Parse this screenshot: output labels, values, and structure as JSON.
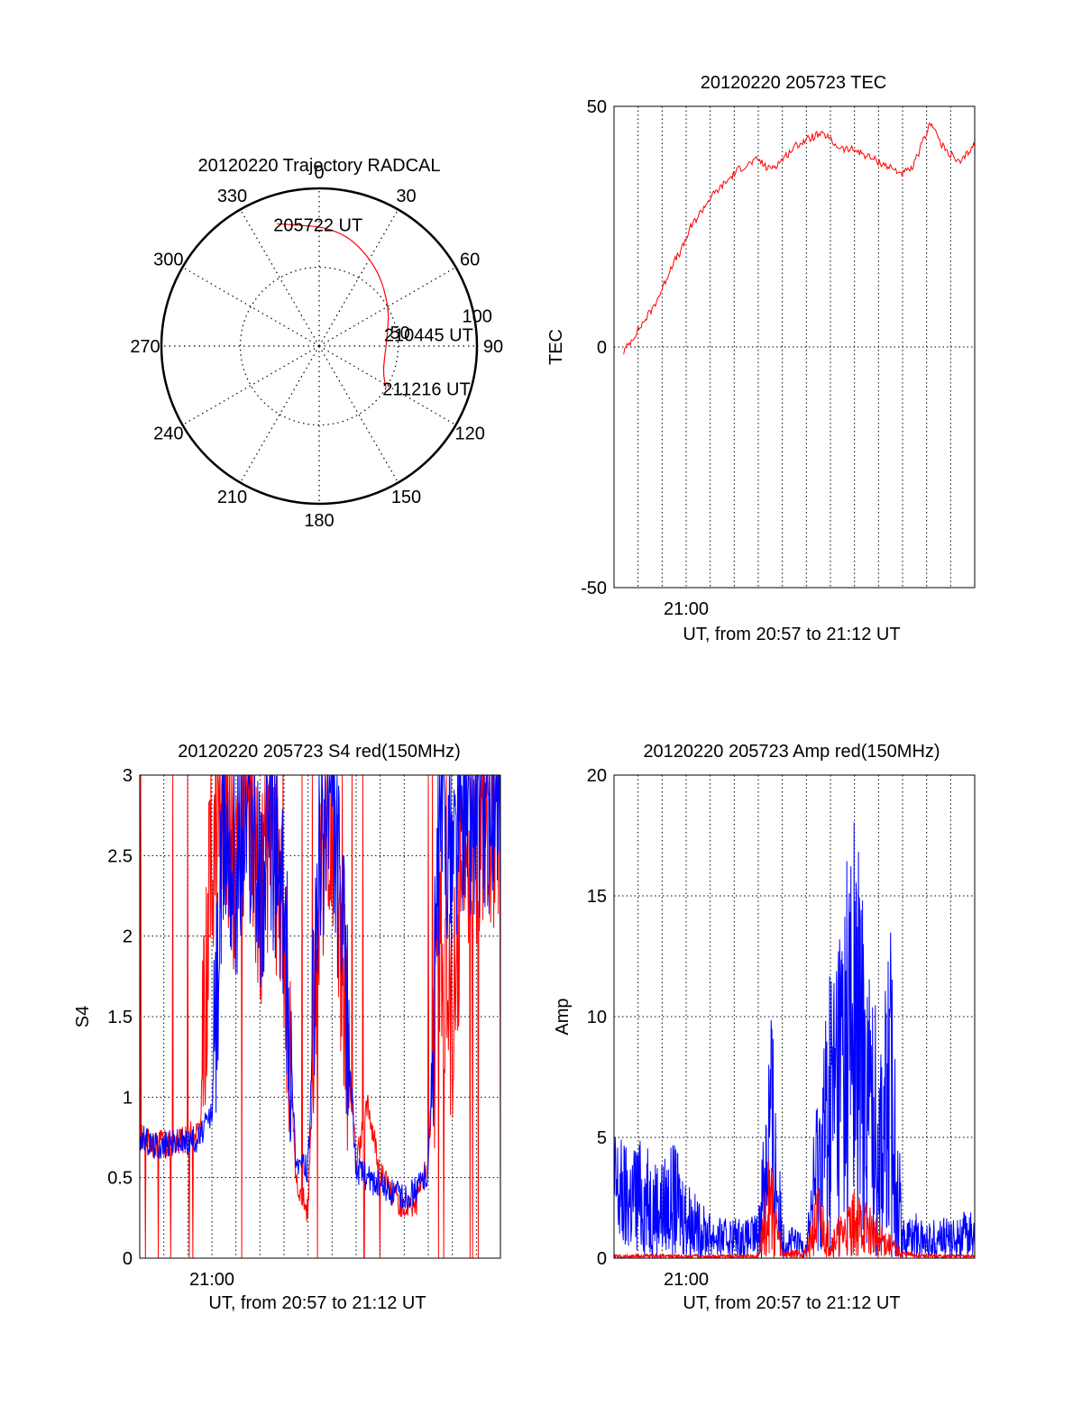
{
  "colors": {
    "primary_trace": "#ff0000",
    "secondary_trace": "#0000ff",
    "axes": "#000000",
    "background": "#ffffff"
  },
  "chart_data": [
    {
      "type": "polar",
      "title": "20120220 Trajectory RADCAL",
      "angle_ticks": [
        "0",
        "30",
        "60",
        "90",
        "120",
        "150",
        "180",
        "210",
        "240",
        "270",
        "300",
        "330"
      ],
      "radius_ticks": [
        "50",
        "100"
      ],
      "r_range": [
        0,
        100
      ],
      "trajectory": {
        "points": [
          [
            341,
            82
          ],
          [
            10,
            76
          ],
          [
            35,
            63
          ],
          [
            60,
            51
          ],
          [
            80,
            44
          ],
          [
            98,
            42
          ],
          [
            113,
            44
          ],
          [
            122,
            50
          ]
        ],
        "labels": [
          {
            "text": "205722 UT",
            "az": 341,
            "r": 82
          },
          {
            "text": "210445 UT",
            "az": 80,
            "r": 44
          },
          {
            "text": "211216 UT",
            "az": 122,
            "r": 50
          }
        ]
      }
    },
    {
      "type": "line",
      "title": "20120220 205723 TEC",
      "ylabel": "TEC",
      "xlabel": "UT, from 20:57 to 21:12 UT",
      "x_tick_labels": [
        {
          "label": "21:00",
          "x": 3.0
        }
      ],
      "xlim": [
        0,
        15.0
      ],
      "ylim": [
        -50,
        50
      ],
      "y_ticks": [
        "-50",
        "0",
        "50"
      ],
      "series": [
        {
          "x": [
            0.4,
            0.8,
            1.2,
            1.6,
            2.0,
            2.4,
            2.8,
            3.2,
            3.6,
            4.0,
            4.4,
            4.8,
            5.2,
            5.6,
            6.0,
            6.4,
            6.8,
            7.2,
            7.6,
            8.0,
            8.4,
            8.8,
            9.2,
            9.6,
            10.0,
            10.4,
            10.8,
            11.2,
            11.6,
            12.0,
            12.4,
            12.8,
            13.2,
            13.6,
            14.0,
            14.4,
            14.8,
            15.0
          ],
          "y": [
            -1,
            2,
            5,
            8,
            12,
            17,
            20,
            25,
            28,
            31,
            33,
            35,
            37,
            38,
            39,
            37,
            38,
            40,
            42,
            43,
            44,
            44,
            42,
            41,
            41,
            40,
            39,
            38,
            37,
            36,
            37,
            42,
            47,
            42,
            40,
            38,
            41,
            42
          ]
        }
      ]
    },
    {
      "type": "line",
      "title": "20120220 205723 S4 red(150MHz)",
      "ylabel": "S4",
      "xlabel": "UT, from 20:57 to 21:12 UT",
      "x_tick_labels": [
        {
          "label": "21:00",
          "x": 3.0
        }
      ],
      "xlim": [
        0,
        15.0
      ],
      "ylim": [
        0,
        3
      ],
      "y_ticks": [
        "0",
        "0.5",
        "1",
        "1.5",
        "2",
        "2.5",
        "3"
      ],
      "series": [
        {
          "color": "red",
          "x": [
            0.0,
            0.5,
            1.0,
            1.5,
            2.0,
            2.5,
            3.0,
            3.5,
            4.0,
            4.5,
            5.0,
            5.5,
            6.0,
            6.5,
            7.0,
            7.5,
            8.0,
            8.5,
            9.0,
            9.5,
            10.0,
            10.5,
            11.0,
            11.5,
            12.0,
            12.5,
            13.0,
            13.5,
            14.0,
            14.5,
            15.0
          ],
          "y": [
            0.75,
            0.7,
            0.72,
            0.7,
            0.75,
            0.8,
            2.6,
            2.8,
            2.4,
            2.9,
            2.2,
            2.7,
            2.0,
            0.5,
            0.28,
            2.5,
            2.8,
            1.6,
            0.6,
            0.95,
            0.55,
            0.4,
            0.32,
            0.35,
            0.6,
            2.0,
            1.4,
            2.7,
            2.5,
            2.8,
            2.6
          ]
        },
        {
          "color": "blue",
          "x": [
            0.0,
            0.5,
            1.0,
            1.5,
            2.0,
            2.5,
            3.0,
            3.5,
            4.0,
            4.5,
            5.0,
            5.5,
            6.0,
            6.5,
            7.0,
            7.5,
            8.0,
            8.5,
            9.0,
            9.5,
            10.0,
            10.5,
            11.0,
            11.5,
            12.0,
            12.5,
            13.0,
            13.5,
            14.0,
            14.5,
            15.0
          ],
          "y": [
            0.75,
            0.7,
            0.7,
            0.72,
            0.72,
            0.75,
            0.9,
            2.7,
            2.4,
            2.8,
            2.3,
            2.6,
            2.1,
            0.6,
            0.55,
            2.6,
            2.9,
            1.8,
            0.55,
            0.5,
            0.45,
            0.4,
            0.38,
            0.42,
            0.55,
            2.8,
            2.5,
            2.9,
            2.7,
            2.8,
            2.6
          ]
        }
      ]
    },
    {
      "type": "line",
      "title": "20120220 205723 Amp red(150MHz)",
      "ylabel": "Amp",
      "xlabel": "UT, from 20:57 to 21:12 UT",
      "x_tick_labels": [
        {
          "label": "21:00",
          "x": 3.0
        }
      ],
      "xlim": [
        0,
        15.0
      ],
      "ylim": [
        0,
        20
      ],
      "y_ticks": [
        "0",
        "5",
        "10",
        "15",
        "20"
      ],
      "series": [
        {
          "color": "blue",
          "x": [
            0.0,
            0.5,
            1.0,
            1.5,
            2.0,
            2.5,
            3.0,
            3.5,
            4.0,
            4.5,
            5.0,
            5.5,
            6.0,
            6.5,
            7.0,
            7.5,
            8.0,
            8.5,
            9.0,
            9.5,
            10.0,
            10.5,
            11.0,
            11.5,
            12.0,
            12.5,
            13.0,
            13.5,
            14.0,
            14.5,
            15.0
          ],
          "y": [
            3.5,
            3.0,
            3.2,
            2.8,
            2.6,
            3.0,
            2.2,
            1.5,
            1.2,
            1.0,
            1.1,
            1.0,
            1.2,
            7.5,
            1.0,
            0.8,
            0.6,
            5.0,
            8.0,
            10.5,
            12.0,
            9.0,
            6.0,
            8.5,
            1.0,
            1.2,
            0.9,
            1.1,
            1.0,
            1.2,
            1.3
          ]
        },
        {
          "color": "red",
          "x": [
            0.0,
            1.0,
            2.0,
            3.0,
            4.0,
            5.0,
            6.0,
            6.5,
            7.0,
            8.0,
            8.5,
            9.0,
            9.5,
            10.0,
            10.5,
            11.0,
            11.5,
            12.0,
            13.0,
            14.0,
            15.0
          ],
          "y": [
            0.1,
            0.1,
            0.1,
            0.1,
            0.1,
            0.1,
            0.1,
            3.0,
            0.2,
            0.3,
            2.0,
            0.8,
            1.2,
            1.8,
            1.5,
            1.0,
            0.6,
            0.2,
            0.1,
            0.1,
            0.1
          ]
        }
      ]
    }
  ]
}
